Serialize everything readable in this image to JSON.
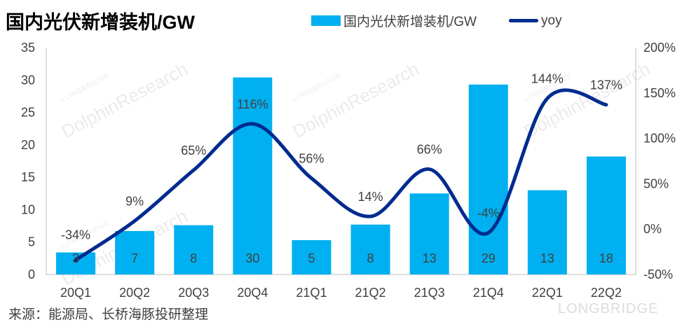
{
  "chart_data": {
    "type": "bar",
    "title": "国内光伏新增装机/GW",
    "categories": [
      "20Q1",
      "20Q2",
      "20Q3",
      "20Q4",
      "21Q1",
      "21Q2",
      "21Q3",
      "21Q4",
      "22Q1",
      "22Q2"
    ],
    "series": [
      {
        "name": "国内光伏新增装机/GW",
        "type": "bar",
        "axis": "left",
        "color": "#00B0F0",
        "values": [
          3.4,
          6.7,
          7.6,
          30.4,
          5.3,
          7.7,
          12.5,
          29.3,
          13.0,
          18.2
        ],
        "labels": [
          "3",
          "7",
          "8",
          "30",
          "5",
          "8",
          "13",
          "29",
          "13",
          "18"
        ]
      },
      {
        "name": "yoy",
        "type": "line",
        "axis": "right",
        "color": "#002B8F",
        "values": [
          -34,
          9,
          65,
          116,
          56,
          14,
          66,
          -4,
          144,
          137
        ],
        "labels": [
          "-34%",
          "9%",
          "65%",
          "116%",
          "56%",
          "14%",
          "66%",
          "-4%",
          "144%",
          "137%"
        ]
      }
    ],
    "y_left": {
      "min": 0,
      "max": 35,
      "ticks": [
        "0",
        "5",
        "10",
        "15",
        "20",
        "25",
        "30",
        "35"
      ]
    },
    "y_right": {
      "min": -50,
      "max": 200,
      "ticks": [
        "-50%",
        "0%",
        "50%",
        "100%",
        "150%",
        "200%"
      ]
    },
    "grid": false,
    "legend": "top-right"
  },
  "source": "来源：能源局、长桥海豚投研整理",
  "watermark": {
    "text": "DolphinResearch",
    "small": "LONGBRIDGE",
    "brand": "LONGBRIDGE"
  }
}
